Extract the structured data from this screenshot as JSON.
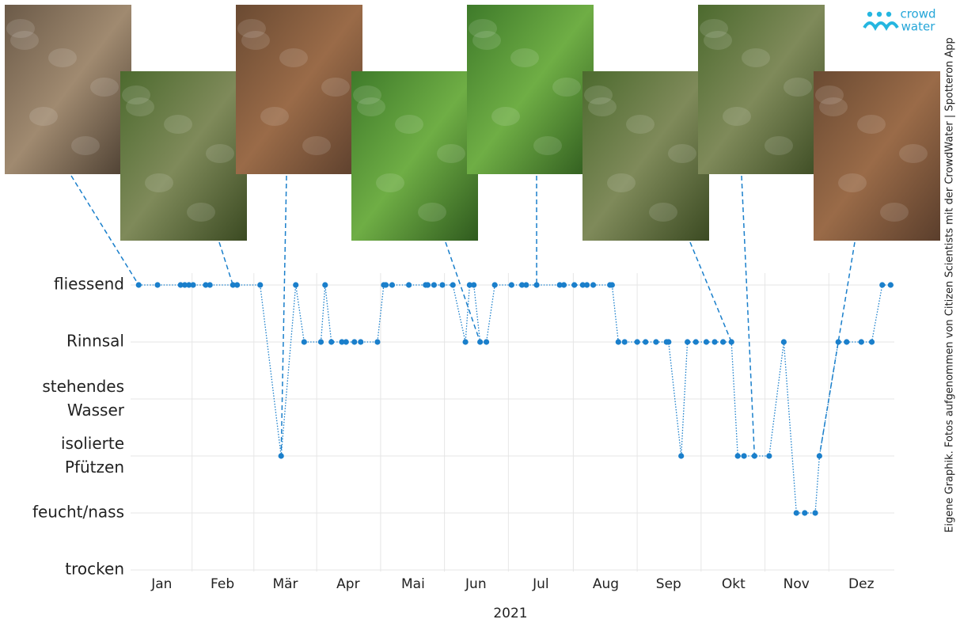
{
  "chart_data": {
    "type": "line",
    "x_label": "2021",
    "logo": [
      "crowd",
      "water"
    ],
    "credit": "Eigene Graphik. Fotos aufgenommen von Citizen Scientists mit der CrowdWater | Spotteron App",
    "x": [
      5,
      14,
      25,
      27,
      29,
      31,
      37,
      39,
      50,
      52,
      63,
      73,
      80,
      84,
      92,
      94,
      97,
      102,
      104,
      108,
      111,
      119,
      122,
      123,
      126,
      134,
      142,
      143,
      146,
      150,
      155,
      161,
      163,
      165,
      168,
      171,
      175,
      183,
      188,
      190,
      195,
      206,
      208,
      213,
      217,
      219,
      222,
      230,
      231,
      234,
      237,
      243,
      247,
      252,
      257,
      258,
      264,
      267,
      271,
      276,
      280,
      284,
      288,
      291,
      294,
      299,
      306,
      313,
      319,
      323,
      328,
      330,
      339,
      343,
      350,
      355,
      360,
      364
    ],
    "values": [
      5,
      5,
      5,
      5,
      5,
      5,
      5,
      5,
      5,
      5,
      5,
      2,
      5,
      4,
      4,
      5,
      4,
      4,
      4,
      4,
      4,
      4,
      5,
      5,
      5,
      5,
      5,
      5,
      5,
      5,
      5,
      4,
      5,
      5,
      4,
      4,
      5,
      5,
      5,
      5,
      5,
      5,
      5,
      5,
      5,
      5,
      5,
      5,
      5,
      4,
      4,
      4,
      4,
      4,
      4,
      4,
      2,
      4,
      4,
      4,
      4,
      4,
      4,
      2,
      2,
      2,
      2,
      4,
      1,
      1,
      1,
      2,
      4,
      4,
      4,
      4,
      5,
      5
    ],
    "color": "#1a7fcb",
    "xlim": [
      0,
      365
    ],
    "xticks": [
      {
        "value": 16,
        "label": "Jan"
      },
      {
        "value": 45,
        "label": "Feb"
      },
      {
        "value": 75,
        "label": "Mär"
      },
      {
        "value": 105,
        "label": "Apr"
      },
      {
        "value": 136,
        "label": "Mai"
      },
      {
        "value": 166,
        "label": "Jun"
      },
      {
        "value": 197,
        "label": "Jul"
      },
      {
        "value": 228,
        "label": "Aug"
      },
      {
        "value": 258,
        "label": "Sep"
      },
      {
        "value": 289,
        "label": "Okt"
      },
      {
        "value": 319,
        "label": "Nov"
      },
      {
        "value": 350,
        "label": "Dez"
      }
    ],
    "ylim": [
      0,
      5
    ],
    "yticks": [
      {
        "value": 0,
        "label": "trocken"
      },
      {
        "value": 1,
        "label": "feucht/nass"
      },
      {
        "value": 2,
        "label": "isolierte Pfützen"
      },
      {
        "value": 3,
        "label": "stehendes Wasser"
      },
      {
        "value": 4,
        "label": "Rinnsal"
      },
      {
        "value": 5,
        "label": "fliessend"
      }
    ],
    "grid": true
  }
}
